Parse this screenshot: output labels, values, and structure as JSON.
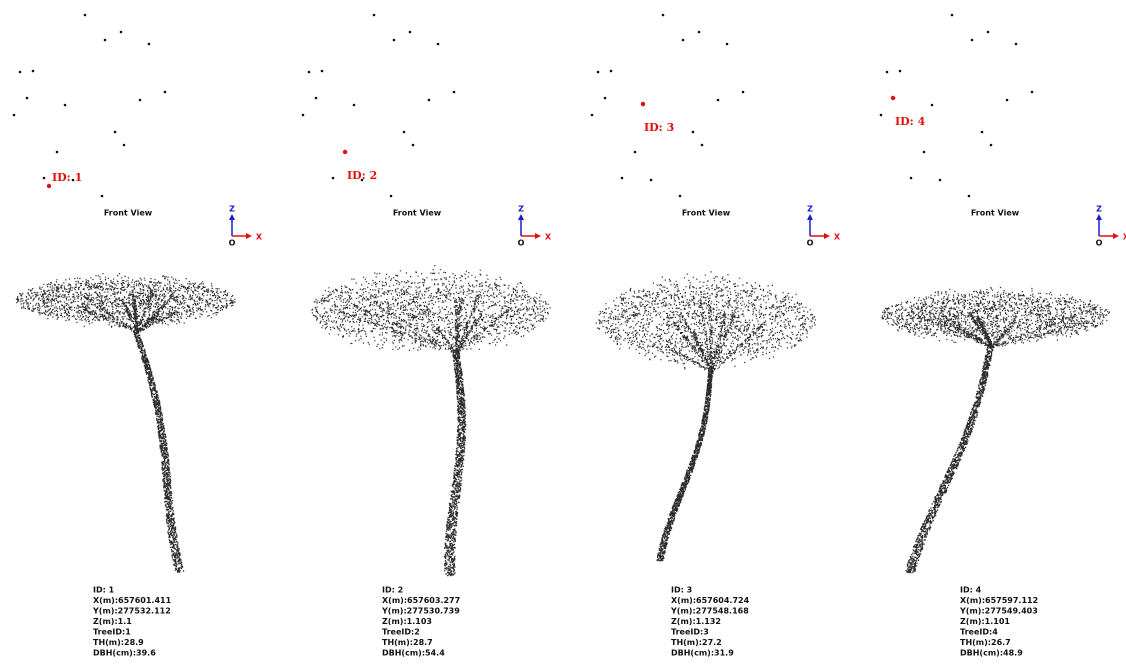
{
  "panels": [
    {
      "marker_label": "ID: 1",
      "view_label": "Front View",
      "axis": {
        "z": "Z",
        "o": "O",
        "x": "X"
      },
      "info": [
        "ID: 1",
        "X(m):657601.411",
        "Y(m):277532.112",
        "Z(m):1.1",
        "TreeID:1",
        "TH(m):28.9",
        "DBH(cm):39.6"
      ]
    },
    {
      "marker_label": "ID: 2",
      "view_label": "Front View",
      "axis": {
        "z": "Z",
        "o": "O",
        "x": "X"
      },
      "info": [
        "ID: 2",
        "X(m):657603.277",
        "Y(m):277530.739",
        "Z(m):1.103",
        "TreeID:2",
        "TH(m):28.7",
        "DBH(cm):54.4"
      ]
    },
    {
      "marker_label": "ID: 3",
      "view_label": "Front View",
      "axis": {
        "z": "Z",
        "o": "O",
        "x": "X"
      },
      "info": [
        "ID: 3",
        "X(m):657604.724",
        "Y(m):277548.168",
        "Z(m):1.132",
        "TreeID:3",
        "TH(m):27.2",
        "DBH(cm):31.9"
      ]
    },
    {
      "marker_label": "ID: 4",
      "view_label": "Front View",
      "axis": {
        "z": "Z",
        "o": "O",
        "x": "X"
      },
      "info": [
        "ID: 4",
        "X(m):657597.112",
        "Y(m):277549.403",
        "Z(m):1.101",
        "TreeID:4",
        "TH(m):26.7",
        "DBH(cm):48.9"
      ]
    }
  ]
}
